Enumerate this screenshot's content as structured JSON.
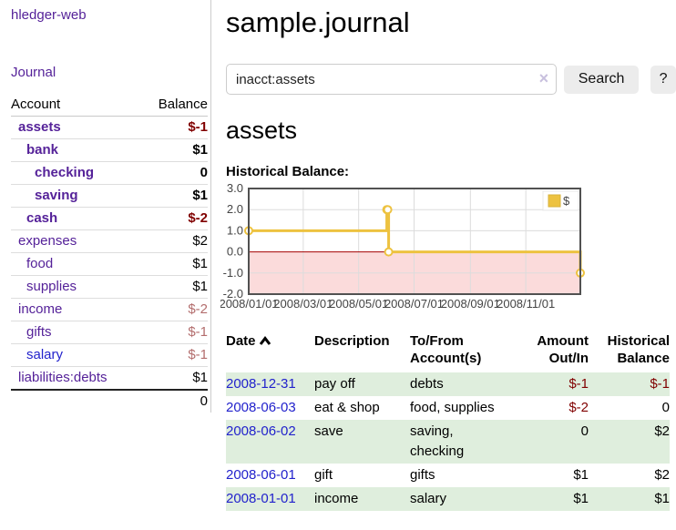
{
  "app": {
    "title": "hledger-web",
    "nav_journal": "Journal"
  },
  "colors": {
    "accent_purple": "#552299",
    "link_blue": "#2222cc",
    "negative_red": "#800000",
    "faded_negative_red": "#b36d6d",
    "row_stripe_green": "#dfeedd",
    "series_gold": "#edc240",
    "chart_negative_fill": "#fbdbdb",
    "chart_zero_line": "#a40000",
    "chart_border": "#515151"
  },
  "sidebar": {
    "header": {
      "account": "Account",
      "balance": "Balance"
    },
    "accounts": [
      {
        "name": "assets",
        "balance": "$-1",
        "indent": 1,
        "bold": true,
        "balance_color": "negative"
      },
      {
        "name": "bank",
        "balance": "$1",
        "indent": 2,
        "bold": true,
        "balance_color": "normal"
      },
      {
        "name": "checking",
        "balance": "0",
        "indent": 3,
        "bold": true,
        "balance_color": "normal"
      },
      {
        "name": "saving",
        "balance": "$1",
        "indent": 3,
        "bold": true,
        "balance_color": "normal"
      },
      {
        "name": "cash",
        "balance": "$-2",
        "indent": 2,
        "bold": true,
        "balance_color": "negative"
      },
      {
        "name": "expenses",
        "balance": "$2",
        "indent": 1,
        "bold": false,
        "balance_color": "normal"
      },
      {
        "name": "food",
        "balance": "$1",
        "indent": 2,
        "bold": false,
        "balance_color": "normal"
      },
      {
        "name": "supplies",
        "balance": "$1",
        "indent": 2,
        "bold": false,
        "balance_color": "normal"
      },
      {
        "name": "income",
        "balance": "$-2",
        "indent": 1,
        "bold": false,
        "balance_color": "faded"
      },
      {
        "name": "gifts",
        "balance": "$-1",
        "indent": 2,
        "bold": false,
        "balance_color": "faded"
      },
      {
        "name": "salary",
        "balance": "$-1",
        "indent": 2,
        "bold": false,
        "balance_color": "faded",
        "link_color": "blue"
      },
      {
        "name": "liabilities:debts",
        "balance": "$1",
        "indent": 1,
        "bold": false,
        "balance_color": "normal"
      }
    ],
    "total": "0"
  },
  "main": {
    "title": "sample.journal",
    "search": {
      "value": "inacct:assets",
      "clear_icon": "×",
      "button_label": "Search",
      "help_label": "?"
    },
    "account_title": "assets",
    "chart_label": "Historical Balance:"
  },
  "chart_data": {
    "type": "line",
    "step": true,
    "title": "Historical Balance",
    "series": [
      {
        "name": "$",
        "color": "#edc240",
        "points": [
          {
            "x": "2008-01-01",
            "y": 1
          },
          {
            "x": "2008-06-01",
            "y": 2
          },
          {
            "x": "2008-06-02",
            "y": 2
          },
          {
            "x": "2008-06-03",
            "y": 0
          },
          {
            "x": "2008-12-31",
            "y": -1
          }
        ]
      }
    ],
    "x_range": [
      "2008-01-01",
      "2008-12-31"
    ],
    "x_ticks": [
      "2008/01/01",
      "2008/03/01",
      "2008/05/01",
      "2008/07/01",
      "2008/09/01",
      "2008/11/01"
    ],
    "y_ticks": [
      3.0,
      2.0,
      1.0,
      0.0,
      -1.0,
      -2.0
    ],
    "ylim": [
      -2,
      3
    ],
    "grid": true,
    "legend_position": "top-right",
    "negative_region_fill": "#fbdbdb",
    "zero_line_color": "#a40000"
  },
  "register": {
    "columns": [
      "Date",
      "Description",
      "To/From Account(s)",
      "Amount Out/In",
      "Historical Balance"
    ],
    "sort_icon": "chevron-up",
    "rows": [
      {
        "date": "2008-12-31",
        "description": "pay off",
        "accounts": "debts",
        "amount": "$-1",
        "amount_negative": true,
        "balance": "$-1",
        "balance_negative": true
      },
      {
        "date": "2008-06-03",
        "description": "eat & shop",
        "accounts": "food, supplies",
        "amount": "$-2",
        "amount_negative": true,
        "balance": "0",
        "balance_negative": false
      },
      {
        "date": "2008-06-02",
        "description": "save",
        "accounts": "saving, checking",
        "amount": "0",
        "amount_negative": false,
        "balance": "$2",
        "balance_negative": false
      },
      {
        "date": "2008-06-01",
        "description": "gift",
        "accounts": "gifts",
        "amount": "$1",
        "amount_negative": false,
        "balance": "$2",
        "balance_negative": false
      },
      {
        "date": "2008-01-01",
        "description": "income",
        "accounts": "salary",
        "amount": "$1",
        "amount_negative": false,
        "balance": "$1",
        "balance_negative": false
      }
    ]
  }
}
